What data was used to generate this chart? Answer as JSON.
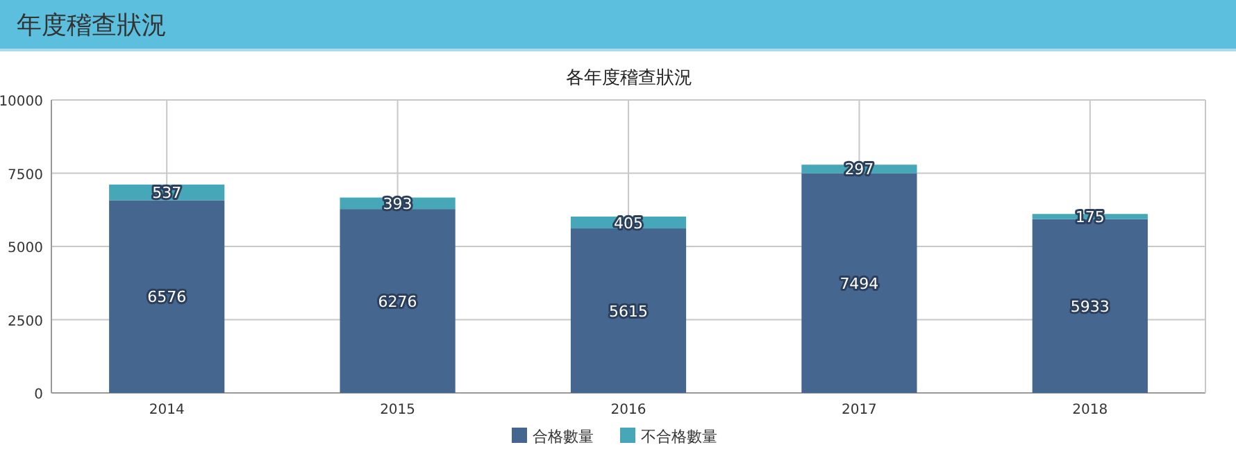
{
  "chart_data": {
    "type": "bar",
    "title": "年度稽查狀況",
    "subtitle": "各年度稽查狀況",
    "categories": [
      "2014",
      "2015",
      "2016",
      "2017",
      "2018"
    ],
    "stacked": true,
    "series": [
      {
        "name": "合格數量",
        "color": "#44668f",
        "values": [
          6576,
          6276,
          5615,
          7494,
          5933
        ]
      },
      {
        "name": "不合格數量",
        "color": "#45a7b7",
        "values": [
          537,
          393,
          405,
          297,
          175
        ]
      }
    ],
    "ylim": [
      0,
      10000
    ],
    "yticks": [
      0,
      2500,
      5000,
      7500,
      10000
    ],
    "grid": true,
    "legend": "bottom",
    "data_labels": true
  }
}
